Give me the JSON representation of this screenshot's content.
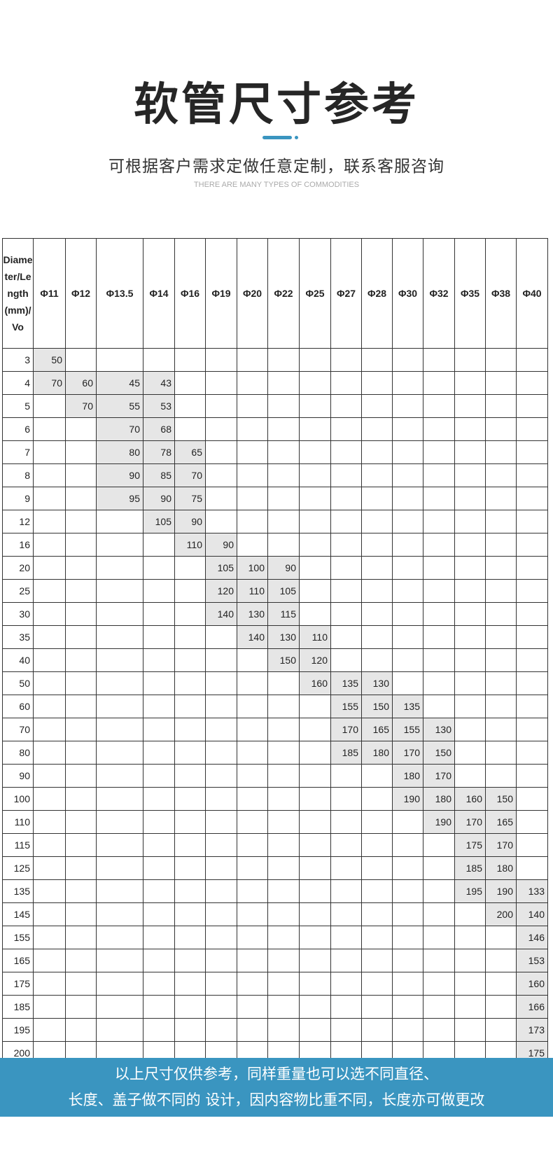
{
  "header": {
    "title": "软管尺寸参考",
    "subtitle": "可根据客户需求定做任意定制，联系客服咨询",
    "english": "THERE ARE MANY TYPES OF COMMODITIES",
    "accent_color": "#3a95c0"
  },
  "table": {
    "corner": "Diameter/Length(mm)/Vo",
    "columns": [
      "Φ11",
      "Φ12",
      "Φ13.5",
      "Φ14",
      "Φ16",
      "Φ19",
      "Φ20",
      "Φ22",
      "Φ25",
      "Φ27",
      "Φ28",
      "Φ30",
      "Φ32",
      "Φ35",
      "Φ38",
      "Φ40"
    ],
    "rows": [
      {
        "label": "3",
        "values": [
          "50",
          "",
          "",
          "",
          "",
          "",
          "",
          "",
          "",
          "",
          "",
          "",
          "",
          "",
          "",
          ""
        ]
      },
      {
        "label": "4",
        "values": [
          "70",
          "60",
          "45",
          "43",
          "",
          "",
          "",
          "",
          "",
          "",
          "",
          "",
          "",
          "",
          "",
          ""
        ]
      },
      {
        "label": "5",
        "values": [
          "",
          "70",
          "55",
          "53",
          "",
          "",
          "",
          "",
          "",
          "",
          "",
          "",
          "",
          "",
          "",
          ""
        ]
      },
      {
        "label": "6",
        "values": [
          "",
          "",
          "70",
          "68",
          "",
          "",
          "",
          "",
          "",
          "",
          "",
          "",
          "",
          "",
          "",
          ""
        ]
      },
      {
        "label": "7",
        "values": [
          "",
          "",
          "80",
          "78",
          "65",
          "",
          "",
          "",
          "",
          "",
          "",
          "",
          "",
          "",
          "",
          ""
        ]
      },
      {
        "label": "8",
        "values": [
          "",
          "",
          "90",
          "85",
          "70",
          "",
          "",
          "",
          "",
          "",
          "",
          "",
          "",
          "",
          "",
          ""
        ]
      },
      {
        "label": "9",
        "values": [
          "",
          "",
          "95",
          "90",
          "75",
          "",
          "",
          "",
          "",
          "",
          "",
          "",
          "",
          "",
          "",
          ""
        ]
      },
      {
        "label": "12",
        "values": [
          "",
          "",
          "",
          "105",
          "90",
          "",
          "",
          "",
          "",
          "",
          "",
          "",
          "",
          "",
          "",
          ""
        ]
      },
      {
        "label": "16",
        "values": [
          "",
          "",
          "",
          "",
          "110",
          "90",
          "",
          "",
          "",
          "",
          "",
          "",
          "",
          "",
          "",
          ""
        ]
      },
      {
        "label": "20",
        "values": [
          "",
          "",
          "",
          "",
          "",
          "105",
          "100",
          "90",
          "",
          "",
          "",
          "",
          "",
          "",
          "",
          ""
        ]
      },
      {
        "label": "25",
        "values": [
          "",
          "",
          "",
          "",
          "",
          "120",
          "110",
          "105",
          "",
          "",
          "",
          "",
          "",
          "",
          "",
          ""
        ]
      },
      {
        "label": "30",
        "values": [
          "",
          "",
          "",
          "",
          "",
          "140",
          "130",
          "115",
          "",
          "",
          "",
          "",
          "",
          "",
          "",
          ""
        ]
      },
      {
        "label": "35",
        "values": [
          "",
          "",
          "",
          "",
          "",
          "",
          "140",
          "130",
          "110",
          "",
          "",
          "",
          "",
          "",
          "",
          ""
        ]
      },
      {
        "label": "40",
        "values": [
          "",
          "",
          "",
          "",
          "",
          "",
          "",
          "150",
          "120",
          "",
          "",
          "",
          "",
          "",
          "",
          ""
        ]
      },
      {
        "label": "50",
        "values": [
          "",
          "",
          "",
          "",
          "",
          "",
          "",
          "",
          "160",
          "135",
          "130",
          "",
          "",
          "",
          "",
          ""
        ]
      },
      {
        "label": "60",
        "values": [
          "",
          "",
          "",
          "",
          "",
          "",
          "",
          "",
          "",
          "155",
          "150",
          "135",
          "",
          "",
          "",
          ""
        ]
      },
      {
        "label": "70",
        "values": [
          "",
          "",
          "",
          "",
          "",
          "",
          "",
          "",
          "",
          "170",
          "165",
          "155",
          "130",
          "",
          "",
          ""
        ]
      },
      {
        "label": "80",
        "values": [
          "",
          "",
          "",
          "",
          "",
          "",
          "",
          "",
          "",
          "185",
          "180",
          "170",
          "150",
          "",
          "",
          ""
        ]
      },
      {
        "label": "90",
        "values": [
          "",
          "",
          "",
          "",
          "",
          "",
          "",
          "",
          "",
          "",
          "",
          "180",
          "170",
          "",
          "",
          ""
        ]
      },
      {
        "label": "100",
        "values": [
          "",
          "",
          "",
          "",
          "",
          "",
          "",
          "",
          "",
          "",
          "",
          "190",
          "180",
          "160",
          "150",
          ""
        ]
      },
      {
        "label": "110",
        "values": [
          "",
          "",
          "",
          "",
          "",
          "",
          "",
          "",
          "",
          "",
          "",
          "",
          "190",
          "170",
          "165",
          ""
        ]
      },
      {
        "label": "115",
        "values": [
          "",
          "",
          "",
          "",
          "",
          "",
          "",
          "",
          "",
          "",
          "",
          "",
          "",
          "175",
          "170",
          ""
        ]
      },
      {
        "label": "125",
        "values": [
          "",
          "",
          "",
          "",
          "",
          "",
          "",
          "",
          "",
          "",
          "",
          "",
          "",
          "185",
          "180",
          ""
        ]
      },
      {
        "label": "135",
        "values": [
          "",
          "",
          "",
          "",
          "",
          "",
          "",
          "",
          "",
          "",
          "",
          "",
          "",
          "195",
          "190",
          "133"
        ]
      },
      {
        "label": "145",
        "values": [
          "",
          "",
          "",
          "",
          "",
          "",
          "",
          "",
          "",
          "",
          "",
          "",
          "",
          "",
          "200",
          "140"
        ]
      },
      {
        "label": "155",
        "values": [
          "",
          "",
          "",
          "",
          "",
          "",
          "",
          "",
          "",
          "",
          "",
          "",
          "",
          "",
          "",
          "146"
        ]
      },
      {
        "label": "165",
        "values": [
          "",
          "",
          "",
          "",
          "",
          "",
          "",
          "",
          "",
          "",
          "",
          "",
          "",
          "",
          "",
          "153"
        ]
      },
      {
        "label": "175",
        "values": [
          "",
          "",
          "",
          "",
          "",
          "",
          "",
          "",
          "",
          "",
          "",
          "",
          "",
          "",
          "",
          "160"
        ]
      },
      {
        "label": "185",
        "values": [
          "",
          "",
          "",
          "",
          "",
          "",
          "",
          "",
          "",
          "",
          "",
          "",
          "",
          "",
          "",
          "166"
        ]
      },
      {
        "label": "195",
        "values": [
          "",
          "",
          "",
          "",
          "",
          "",
          "",
          "",
          "",
          "",
          "",
          "",
          "",
          "",
          "",
          "173"
        ]
      },
      {
        "label": "200",
        "values": [
          "",
          "",
          "",
          "",
          "",
          "",
          "",
          "",
          "",
          "",
          "",
          "",
          "",
          "",
          "",
          "175"
        ]
      }
    ],
    "fill_color": "#e6e6e6"
  },
  "footer": {
    "line1": "以上尺寸仅供参考，同样重量也可以选不同直径、",
    "line2": "长度、盖子做不同的 设计，因内容物比重不同，长度亦可做更改"
  }
}
